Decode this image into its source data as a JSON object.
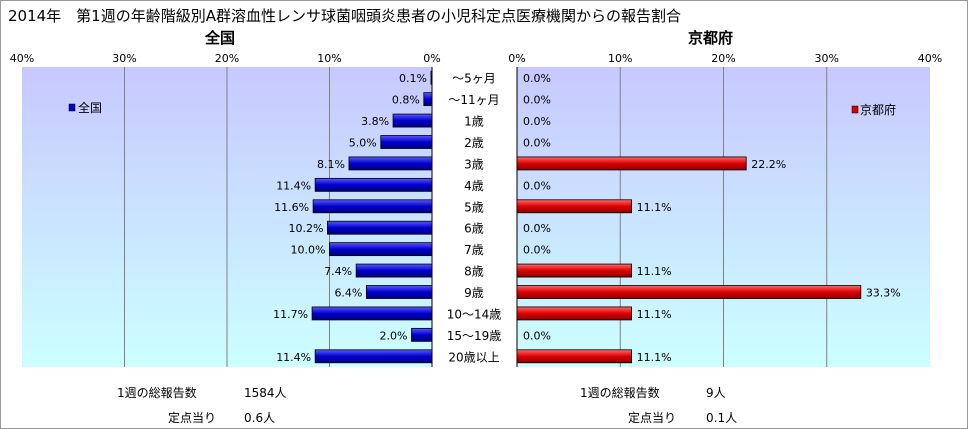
{
  "title": "2014年　第1週の年齢階級別A群溶血性レンサ球菌咽頭炎患者の小児科定点医療機関からの報告割合",
  "colors": {
    "national": "#0000cc",
    "kyoto": "#dd0000",
    "plot_bg_top": "#c8c8ff",
    "plot_bg_bottom": "#ccffff"
  },
  "chart_data": [
    {
      "type": "bar",
      "orientation": "horizontal",
      "title": "全国",
      "legend": "全国",
      "legend_position": "top-left",
      "x_ticks": [
        "40%",
        "30%",
        "20%",
        "10%",
        "0%"
      ],
      "xlim": [
        0,
        40
      ],
      "x_direction": "reversed",
      "grid": true,
      "categories": [
        "～5ヶ月",
        "～11ヶ月",
        "1歳",
        "2歳",
        "3歳",
        "4歳",
        "5歳",
        "6歳",
        "7歳",
        "8歳",
        "9歳",
        "10～14歳",
        "15～19歳",
        "20歳以上"
      ],
      "values": [
        0.1,
        0.8,
        3.8,
        5.0,
        8.1,
        11.4,
        11.6,
        10.2,
        10.0,
        7.4,
        6.4,
        11.7,
        2.0,
        11.4
      ],
      "value_labels": [
        "0.1%",
        "0.8%",
        "3.8%",
        "5.0%",
        "8.1%",
        "11.4%",
        "11.6%",
        "10.2%",
        "10.0%",
        "7.4%",
        "6.4%",
        "11.7%",
        "2.0%",
        "11.4%"
      ]
    },
    {
      "type": "bar",
      "orientation": "horizontal",
      "title": "京都府",
      "legend": "京都府",
      "legend_position": "top-right",
      "x_ticks": [
        "0%",
        "10%",
        "20%",
        "30%",
        "40%"
      ],
      "xlim": [
        0,
        40
      ],
      "grid": true,
      "categories": [
        "～5ヶ月",
        "～11ヶ月",
        "1歳",
        "2歳",
        "3歳",
        "4歳",
        "5歳",
        "6歳",
        "7歳",
        "8歳",
        "9歳",
        "10～14歳",
        "15～19歳",
        "20歳以上"
      ],
      "values": [
        0.0,
        0.0,
        0.0,
        0.0,
        22.2,
        0.0,
        11.1,
        0.0,
        0.0,
        11.1,
        33.3,
        11.1,
        0.0,
        11.1
      ],
      "value_labels": [
        "0.0%",
        "0.0%",
        "0.0%",
        "0.0%",
        "22.2%",
        "0.0%",
        "11.1%",
        "0.0%",
        "0.0%",
        "11.1%",
        "33.3%",
        "11.1%",
        "0.0%",
        "11.1%"
      ]
    }
  ],
  "footer": {
    "national": {
      "total_label": "1週の総報告数",
      "total_value": "1584人",
      "per_label": "定点当り",
      "per_value": "0.6人"
    },
    "kyoto": {
      "total_label": "1週の総報告数",
      "total_value": "9人",
      "per_label": "定点当り",
      "per_value": "0.1人"
    }
  }
}
